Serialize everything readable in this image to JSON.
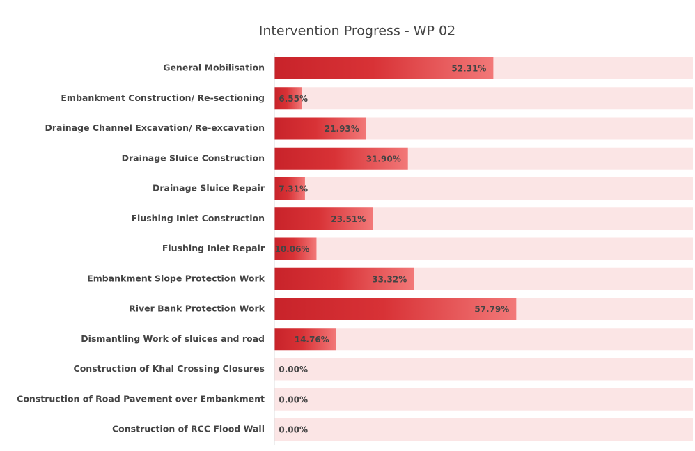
{
  "chart_data": {
    "type": "bar",
    "orientation": "horizontal",
    "title": "Intervention Progress - WP 02",
    "categories": [
      "General Mobilisation",
      "Embankment Construction/ Re-sectioning",
      "Drainage Channel Excavation/ Re-excavation",
      "Drainage Sluice Construction",
      "Drainage Sluice Repair",
      "Flushing Inlet Construction",
      "Flushing Inlet Repair",
      "Embankment Slope Protection Work",
      "River Bank Protection Work",
      "Dismantling Work of sluices and road",
      "Construction of Khal Crossing Closures",
      "Construction of Road Pavement over Embankment",
      "Construction of RCC Flood Wall"
    ],
    "values": [
      52.31,
      6.55,
      21.93,
      31.9,
      7.31,
      23.51,
      10.06,
      33.32,
      57.79,
      14.76,
      0,
      0,
      0
    ],
    "value_labels": [
      "52.31%",
      "6.55%",
      "21.93%",
      "31.90%",
      "7.31%",
      "23.51%",
      "10.06%",
      "33.32%",
      "57.79%",
      "14.76%",
      "0.00%",
      "0.00%",
      "0.00%"
    ],
    "color": "#d32a2f",
    "track_color": "#fbe5e5",
    "xlim": [
      0,
      100
    ]
  }
}
